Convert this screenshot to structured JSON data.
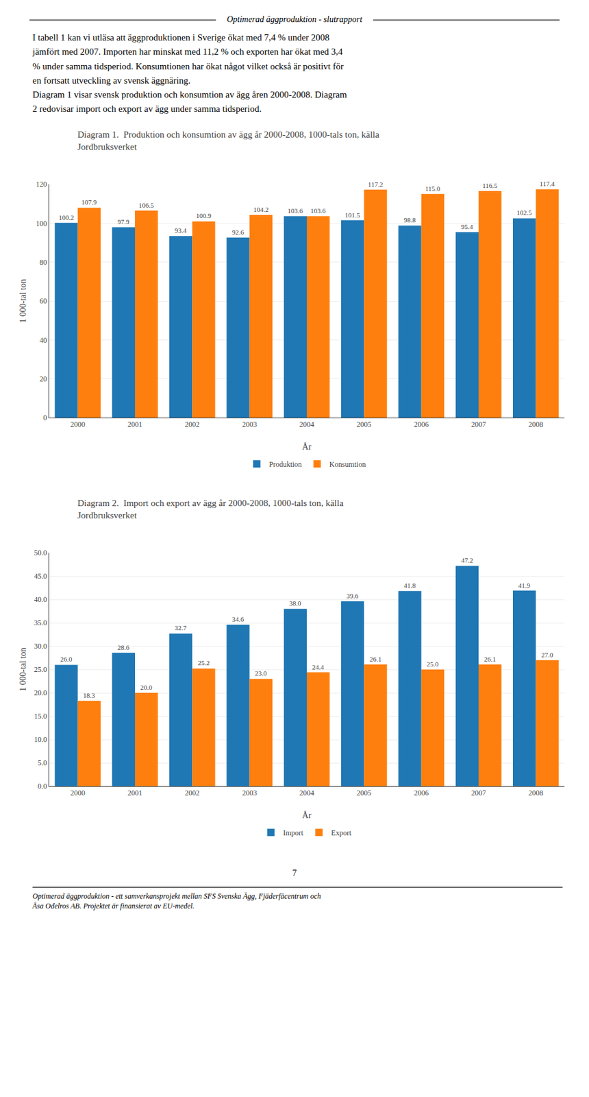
{
  "header": "Optimerad äggproduktion - slutrapport",
  "body": [
    "I tabell 1 kan vi utläsa att äggproduktionen i Sverige ökat med 7,4 % under 2008",
    "jämfört med 2007. Importen har minskat med 11,2 % och exporten har ökat med 3,4",
    "% under samma tidsperiod. Konsumtionen har ökat något vilket också är positivt för",
    "en fortsatt utveckling av svensk äggnäring.",
    "Diagram 1 visar svensk produktion och konsumtion av ägg åren 2000-2008. Diagram",
    "2 redovisar import och export av ägg under samma tidsperiod."
  ],
  "page_number": "7",
  "footer": [
    "Optimerad äggproduktion - ett samverkansprojekt mellan SFS Svenska Ägg, Fjäderfäcentrum och",
    "Åsa Odelros AB. Projektet är finansierat av EU-medel."
  ],
  "chart_data": [
    {
      "type": "bar",
      "title": "Diagram 1.  Produktion och konsumtion av ägg år 2000-2008, 1000-tals ton, källa\nJordbruksverket",
      "x_label": "År",
      "y_label": "1 000-tal ton",
      "categories": [
        "2000",
        "2001",
        "2002",
        "2003",
        "2004",
        "2005",
        "2006",
        "2007",
        "2008"
      ],
      "series": [
        {
          "name": "Produktion",
          "values": [
            100.2,
            97.9,
            93.4,
            92.6,
            103.6,
            101.5,
            98.8,
            95.4,
            102.5
          ],
          "value_labels": [
            "100.2",
            "97.9",
            "93.4",
            "92.6",
            "103.6",
            "101.5",
            "98.8",
            "95.4",
            "102.5"
          ]
        },
        {
          "name": "Konsumtion",
          "values": [
            107.9,
            106.5,
            100.9,
            104.2,
            103.6,
            117.2,
            115.0,
            116.5,
            117.4
          ],
          "value_labels": [
            "107.9",
            "106.5",
            "100.9",
            "104.2",
            "103.6",
            "117.2",
            "115.0",
            "116.5",
            "117.4"
          ]
        }
      ],
      "ylim": [
        0,
        120
      ],
      "yticks": [
        0,
        20,
        40,
        60,
        80,
        100,
        120
      ],
      "grid": true,
      "legend": "bottom",
      "data_labels": true
    },
    {
      "type": "bar",
      "title": "Diagram 2.  Import och export av ägg år 2000-2008, 1000-tals ton, källa\nJordbruksverket",
      "x_label": "År",
      "y_label": "1 000-tal ton",
      "categories": [
        "2000",
        "2001",
        "2002",
        "2003",
        "2004",
        "2005",
        "2006",
        "2007",
        "2008"
      ],
      "series": [
        {
          "name": "Import",
          "values": [
            26.0,
            28.6,
            32.7,
            34.6,
            38.0,
            39.6,
            41.8,
            47.2,
            41.9
          ],
          "value_labels": [
            "26.0",
            "28.6",
            "32.7",
            "34.6",
            "38.0",
            "39.6",
            "41.8",
            "47.2",
            "41.9"
          ]
        },
        {
          "name": "Export",
          "values": [
            18.3,
            20.0,
            25.2,
            23.0,
            24.4,
            26.1,
            25.0,
            26.1,
            27.0
          ],
          "value_labels": [
            "18.3",
            "20.0",
            "25.2",
            "23.0",
            "24.4",
            "26.1",
            "25.0",
            "26.1",
            "27.0"
          ]
        }
      ],
      "ylim": [
        0.0,
        50.0
      ],
      "yticks": [
        {
          "value": 0,
          "label": "0.0"
        },
        {
          "value": 5,
          "label": "5.0"
        },
        {
          "value": 10,
          "label": "10.0"
        },
        {
          "value": 15,
          "label": "15.0"
        },
        {
          "value": 20,
          "label": "20.0"
        },
        {
          "value": 25,
          "label": "25.0"
        },
        {
          "value": 30,
          "label": "30.0"
        },
        {
          "value": 35,
          "label": "35.0"
        },
        {
          "value": 40,
          "label": "40.0"
        },
        {
          "value": 45,
          "label": "45.0"
        },
        {
          "value": 50,
          "label": "50.0"
        }
      ],
      "grid": true,
      "legend": "bottom",
      "data_labels": true
    }
  ]
}
